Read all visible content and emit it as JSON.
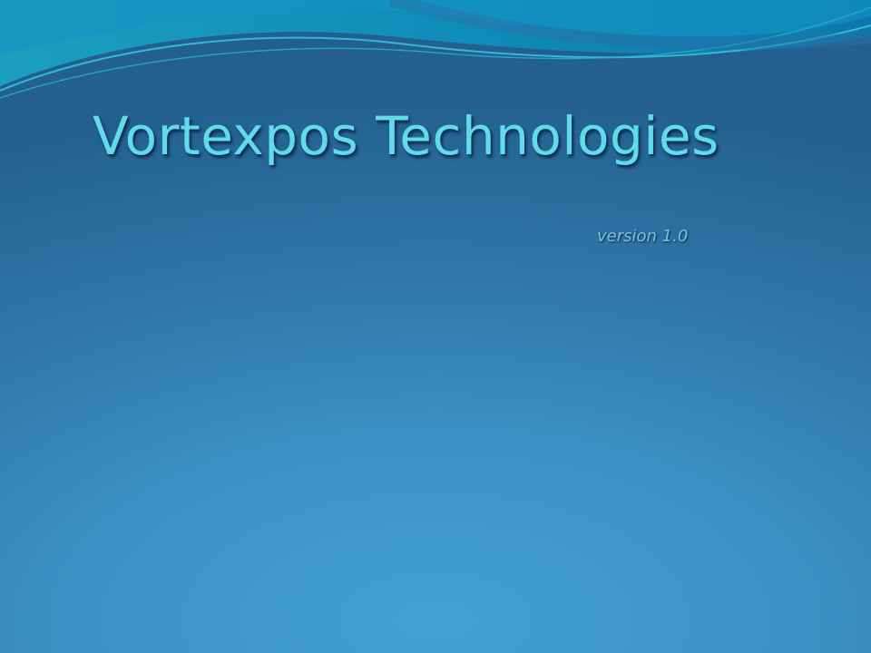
{
  "slide": {
    "title": "Vortexpos Technologies",
    "subtitle": "version 1.0"
  },
  "theme": {
    "title_color": "#5fdbe9",
    "subtitle_color": "#7cc2dd",
    "background_top": "#23608f",
    "background_bottom": "#449fd3",
    "wave_colors": [
      "#1aa0c0",
      "#1187b8",
      "#2bb5d0"
    ],
    "decoration": "wave-header"
  }
}
